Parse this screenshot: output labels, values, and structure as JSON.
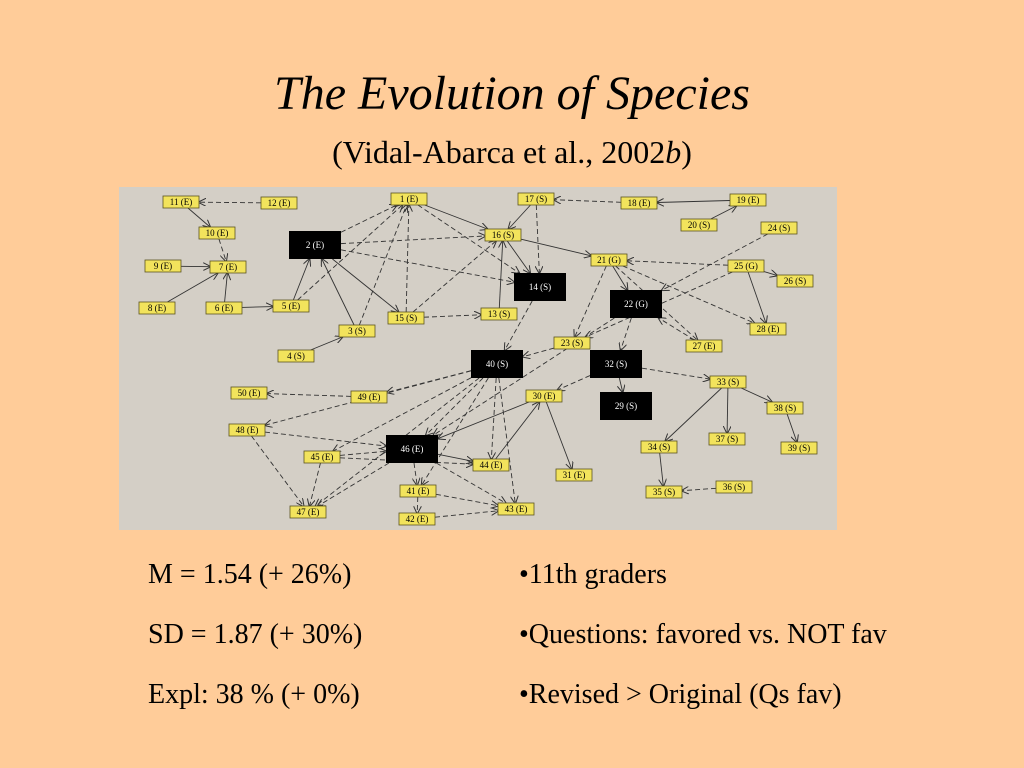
{
  "slide": {
    "title": "The Evolution of Species",
    "subtitle_main": "(Vidal-Abarca et al., 2002",
    "subtitle_italic": "b",
    "subtitle_end": ")"
  },
  "stats": [
    "M = 1.54 (+ 26%)",
    "SD = 1.87 (+ 30%)",
    "Expl: 38 % (+ 0%)"
  ],
  "bullets": [
    "•11th graders",
    "•Questions: favored vs. NOT fav",
    "•Revised > Original (Qs fav)"
  ],
  "colors": {
    "background": "#ffcc99",
    "diagram_bg": "#d4cfc6",
    "node_yellow": "#f2e35c",
    "node_black": "#000000"
  },
  "nodes": [
    {
      "id": "1",
      "label": "1 (E)",
      "style": "yellow"
    },
    {
      "id": "2",
      "label": "2 (E)",
      "style": "black"
    },
    {
      "id": "3",
      "label": "3 (S)",
      "style": "yellow"
    },
    {
      "id": "4",
      "label": "4 (S)",
      "style": "yellow"
    },
    {
      "id": "5",
      "label": "5 (E)",
      "style": "yellow"
    },
    {
      "id": "6",
      "label": "6 (E)",
      "style": "yellow"
    },
    {
      "id": "7",
      "label": "7 (E)",
      "style": "yellow"
    },
    {
      "id": "8",
      "label": "8 (E)",
      "style": "yellow"
    },
    {
      "id": "9",
      "label": "9 (E)",
      "style": "yellow"
    },
    {
      "id": "10",
      "label": "10 (E)",
      "style": "yellow"
    },
    {
      "id": "11",
      "label": "11 (E)",
      "style": "yellow"
    },
    {
      "id": "12",
      "label": "12 (E)",
      "style": "yellow"
    },
    {
      "id": "13",
      "label": "13 (S)",
      "style": "yellow"
    },
    {
      "id": "14",
      "label": "14 (S)",
      "style": "black"
    },
    {
      "id": "15",
      "label": "15 (S)",
      "style": "yellow"
    },
    {
      "id": "16",
      "label": "16 (S)",
      "style": "yellow"
    },
    {
      "id": "17",
      "label": "17 (S)",
      "style": "yellow"
    },
    {
      "id": "18",
      "label": "18 (E)",
      "style": "yellow"
    },
    {
      "id": "19",
      "label": "19 (E)",
      "style": "yellow"
    },
    {
      "id": "20",
      "label": "20 (S)",
      "style": "yellow"
    },
    {
      "id": "21",
      "label": "21 (G)",
      "style": "yellow"
    },
    {
      "id": "22",
      "label": "22 (G)",
      "style": "black"
    },
    {
      "id": "23",
      "label": "23 (S)",
      "style": "yellow"
    },
    {
      "id": "24",
      "label": "24 (S)",
      "style": "yellow"
    },
    {
      "id": "25",
      "label": "25 (G)",
      "style": "yellow"
    },
    {
      "id": "26",
      "label": "26 (S)",
      "style": "yellow"
    },
    {
      "id": "27",
      "label": "27 (E)",
      "style": "yellow"
    },
    {
      "id": "28",
      "label": "28 (E)",
      "style": "yellow"
    },
    {
      "id": "29",
      "label": "29 (S)",
      "style": "black"
    },
    {
      "id": "30",
      "label": "30 (E)",
      "style": "yellow"
    },
    {
      "id": "31",
      "label": "31 (E)",
      "style": "yellow"
    },
    {
      "id": "32",
      "label": "32 (S)",
      "style": "black"
    },
    {
      "id": "33",
      "label": "33 (S)",
      "style": "yellow"
    },
    {
      "id": "34",
      "label": "34 (S)",
      "style": "yellow"
    },
    {
      "id": "35",
      "label": "35 (S)",
      "style": "yellow"
    },
    {
      "id": "36",
      "label": "36 (S)",
      "style": "yellow"
    },
    {
      "id": "37",
      "label": "37 (S)",
      "style": "yellow"
    },
    {
      "id": "38",
      "label": "38 (S)",
      "style": "yellow"
    },
    {
      "id": "39",
      "label": "39 (S)",
      "style": "yellow"
    },
    {
      "id": "40",
      "label": "40 (S)",
      "style": "black"
    },
    {
      "id": "41",
      "label": "41 (E)",
      "style": "yellow"
    },
    {
      "id": "42",
      "label": "42 (E)",
      "style": "yellow"
    },
    {
      "id": "43",
      "label": "43 (E)",
      "style": "yellow"
    },
    {
      "id": "44",
      "label": "44 (E)",
      "style": "yellow"
    },
    {
      "id": "45",
      "label": "45 (E)",
      "style": "yellow"
    },
    {
      "id": "46",
      "label": "46 (E)",
      "style": "black"
    },
    {
      "id": "47",
      "label": "47 (E)",
      "style": "yellow"
    },
    {
      "id": "48",
      "label": "48 (E)",
      "style": "yellow"
    },
    {
      "id": "49",
      "label": "49 (E)",
      "style": "yellow"
    },
    {
      "id": "50",
      "label": "50 (E)",
      "style": "yellow"
    }
  ],
  "edges": [
    {
      "from": "12",
      "to": "11",
      "dashed": true
    },
    {
      "from": "11",
      "to": "10",
      "dashed": false
    },
    {
      "from": "10",
      "to": "7",
      "dashed": true
    },
    {
      "from": "9",
      "to": "7",
      "dashed": false
    },
    {
      "from": "8",
      "to": "7",
      "dashed": false
    },
    {
      "from": "6",
      "to": "7",
      "dashed": false
    },
    {
      "from": "6",
      "to": "5",
      "dashed": false
    },
    {
      "from": "5",
      "to": "2",
      "dashed": false
    },
    {
      "from": "5",
      "to": "1",
      "dashed": true
    },
    {
      "from": "4",
      "to": "3",
      "dashed": false
    },
    {
      "from": "3",
      "to": "2",
      "dashed": false
    },
    {
      "from": "3",
      "to": "1",
      "dashed": true
    },
    {
      "from": "2",
      "to": "1",
      "dashed": true
    },
    {
      "from": "2",
      "to": "16",
      "dashed": true
    },
    {
      "from": "2",
      "to": "15",
      "dashed": false
    },
    {
      "from": "2",
      "to": "14",
      "dashed": true
    },
    {
      "from": "15",
      "to": "13",
      "dashed": true
    },
    {
      "from": "15",
      "to": "1",
      "dashed": true
    },
    {
      "from": "15",
      "to": "16",
      "dashed": true
    },
    {
      "from": "1",
      "to": "16",
      "dashed": false
    },
    {
      "from": "1",
      "to": "14",
      "dashed": true
    },
    {
      "from": "16",
      "to": "14",
      "dashed": false
    },
    {
      "from": "17",
      "to": "16",
      "dashed": false
    },
    {
      "from": "17",
      "to": "14",
      "dashed": true
    },
    {
      "from": "18",
      "to": "17",
      "dashed": true
    },
    {
      "from": "19",
      "to": "18",
      "dashed": false
    },
    {
      "from": "20",
      "to": "19",
      "dashed": false
    },
    {
      "from": "16",
      "to": "21",
      "dashed": false
    },
    {
      "from": "13",
      "to": "16",
      "dashed": false
    },
    {
      "from": "21",
      "to": "22",
      "dashed": false
    },
    {
      "from": "21",
      "to": "23",
      "dashed": true
    },
    {
      "from": "21",
      "to": "27",
      "dashed": true
    },
    {
      "from": "25",
      "to": "21",
      "dashed": true
    },
    {
      "from": "24",
      "to": "22",
      "dashed": true
    },
    {
      "from": "25",
      "to": "23",
      "dashed": true
    },
    {
      "from": "25",
      "to": "26",
      "dashed": false
    },
    {
      "from": "25",
      "to": "28",
      "dashed": false
    },
    {
      "from": "21",
      "to": "28",
      "dashed": true
    },
    {
      "from": "22",
      "to": "32",
      "dashed": true
    },
    {
      "from": "27",
      "to": "22",
      "dashed": true
    },
    {
      "from": "32",
      "to": "29",
      "dashed": false
    },
    {
      "from": "32",
      "to": "30",
      "dashed": true
    },
    {
      "from": "32",
      "to": "33",
      "dashed": true
    },
    {
      "from": "30",
      "to": "46",
      "dashed": false
    },
    {
      "from": "30",
      "to": "31",
      "dashed": false
    },
    {
      "from": "33",
      "to": "34",
      "dashed": false
    },
    {
      "from": "33",
      "to": "37",
      "dashed": false
    },
    {
      "from": "33",
      "to": "38",
      "dashed": false
    },
    {
      "from": "38",
      "to": "39",
      "dashed": false
    },
    {
      "from": "34",
      "to": "35",
      "dashed": false
    },
    {
      "from": "36",
      "to": "35",
      "dashed": true
    },
    {
      "from": "40",
      "to": "49",
      "dashed": true
    },
    {
      "from": "40",
      "to": "48",
      "dashed": true
    },
    {
      "from": "40",
      "to": "45",
      "dashed": true
    },
    {
      "from": "40",
      "to": "47",
      "dashed": true
    },
    {
      "from": "40",
      "to": "44",
      "dashed": true
    },
    {
      "from": "40",
      "to": "43",
      "dashed": true
    },
    {
      "from": "40",
      "to": "41",
      "dashed": true
    },
    {
      "from": "40",
      "to": "46",
      "dashed": true
    },
    {
      "from": "49",
      "to": "50",
      "dashed": true
    },
    {
      "from": "48",
      "to": "46",
      "dashed": true
    },
    {
      "from": "48",
      "to": "47",
      "dashed": true
    },
    {
      "from": "45",
      "to": "46",
      "dashed": true
    },
    {
      "from": "45",
      "to": "47",
      "dashed": true
    },
    {
      "from": "46",
      "to": "44",
      "dashed": false
    },
    {
      "from": "46",
      "to": "47",
      "dashed": true
    },
    {
      "from": "46",
      "to": "41",
      "dashed": true
    },
    {
      "from": "46",
      "to": "43",
      "dashed": true
    },
    {
      "from": "41",
      "to": "42",
      "dashed": true
    },
    {
      "from": "41",
      "to": "43",
      "dashed": true
    },
    {
      "from": "42",
      "to": "43",
      "dashed": true
    },
    {
      "from": "45",
      "to": "44",
      "dashed": true
    },
    {
      "from": "14",
      "to": "40",
      "dashed": true
    },
    {
      "from": "23",
      "to": "40",
      "dashed": true
    },
    {
      "from": "22",
      "to": "46",
      "dashed": true
    },
    {
      "from": "44",
      "to": "30",
      "dashed": false
    }
  ]
}
